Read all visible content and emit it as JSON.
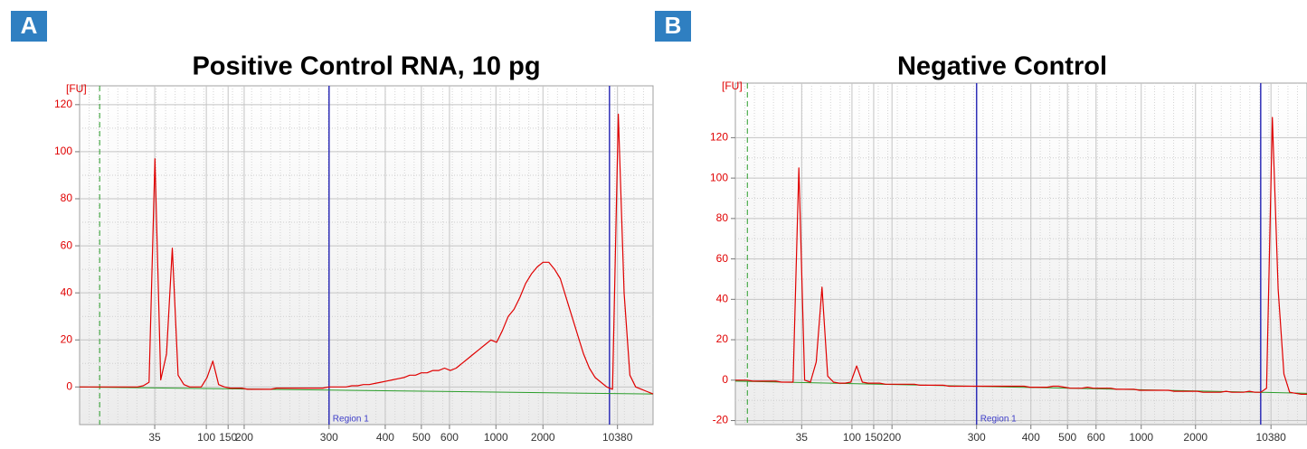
{
  "chart_data": [
    {
      "type": "line",
      "panel": "A",
      "title": "Positive Control RNA, 10 pg",
      "ylabel": "[FU]",
      "annotation": "Region 1",
      "grid": true,
      "xticks": [
        35,
        100,
        150,
        200,
        300,
        400,
        500,
        600,
        1000,
        2000,
        10380
      ],
      "ylim": [
        -16,
        128
      ],
      "yticks": [
        0,
        20,
        40,
        60,
        80,
        100,
        120
      ],
      "color": "#e00000",
      "values": [
        0,
        0,
        0,
        0,
        0,
        0,
        0,
        0,
        0,
        0,
        0,
        0.5,
        2,
        97,
        3,
        14,
        59,
        5,
        1,
        0,
        0,
        0,
        4,
        11,
        1,
        0,
        -0.5,
        -0.5,
        -0.5,
        -1,
        -1,
        -1,
        -1,
        -1,
        -0.5,
        -0.5,
        -0.5,
        -0.5,
        -0.5,
        -0.5,
        -0.5,
        -0.5,
        -0.5,
        0,
        0,
        0,
        0,
        0.5,
        0.5,
        1,
        1,
        1.5,
        2,
        2.5,
        3,
        3.5,
        4,
        5,
        5,
        6,
        6,
        7,
        7,
        8,
        7,
        8,
        10,
        12,
        14,
        16,
        18,
        20,
        19,
        24,
        30,
        33,
        38,
        44,
        48,
        51,
        53,
        53,
        50,
        46,
        38,
        30,
        22,
        14,
        8,
        4,
        2,
        0,
        -1,
        116,
        40,
        5,
        0,
        -1,
        -2,
        -3
      ]
    },
    {
      "type": "line",
      "panel": "B",
      "title": "Negative Control",
      "ylabel": "[FU]",
      "annotation": "Region 1",
      "grid": true,
      "xticks": [
        35,
        100,
        150,
        200,
        300,
        400,
        500,
        600,
        1000,
        2000,
        10380
      ],
      "ylim": [
        -22,
        147
      ],
      "yticks": [
        -20,
        0,
        20,
        40,
        60,
        80,
        100,
        120
      ],
      "color": "#e00000",
      "values": [
        0,
        0,
        0,
        -0.5,
        -0.5,
        -0.5,
        -0.5,
        -0.5,
        -1,
        -1,
        -1,
        105,
        0,
        -1,
        9,
        46,
        2,
        -1,
        -1.5,
        -1.5,
        -1,
        7,
        -1,
        -1.5,
        -1.5,
        -1.5,
        -2,
        -2,
        -2,
        -2,
        -2,
        -2,
        -2.5,
        -2.5,
        -2.5,
        -2.5,
        -2.5,
        -3,
        -3,
        -3,
        -3,
        -3,
        -3,
        -3,
        -3,
        -3,
        -3,
        -3,
        -3,
        -3,
        -3,
        -3.5,
        -3.5,
        -3.5,
        -3.5,
        -3,
        -3,
        -3.5,
        -4,
        -4,
        -4,
        -3.5,
        -4,
        -4,
        -4,
        -4,
        -4.5,
        -4.5,
        -4.5,
        -4.5,
        -5,
        -5,
        -5,
        -5,
        -5,
        -5,
        -5.5,
        -5.5,
        -5.5,
        -5.5,
        -5.5,
        -6,
        -6,
        -6,
        -6,
        -5.5,
        -6,
        -6,
        -6,
        -5.5,
        -6,
        -6,
        -4,
        130,
        45,
        3,
        -6,
        -6.5,
        -7,
        -7
      ]
    }
  ]
}
